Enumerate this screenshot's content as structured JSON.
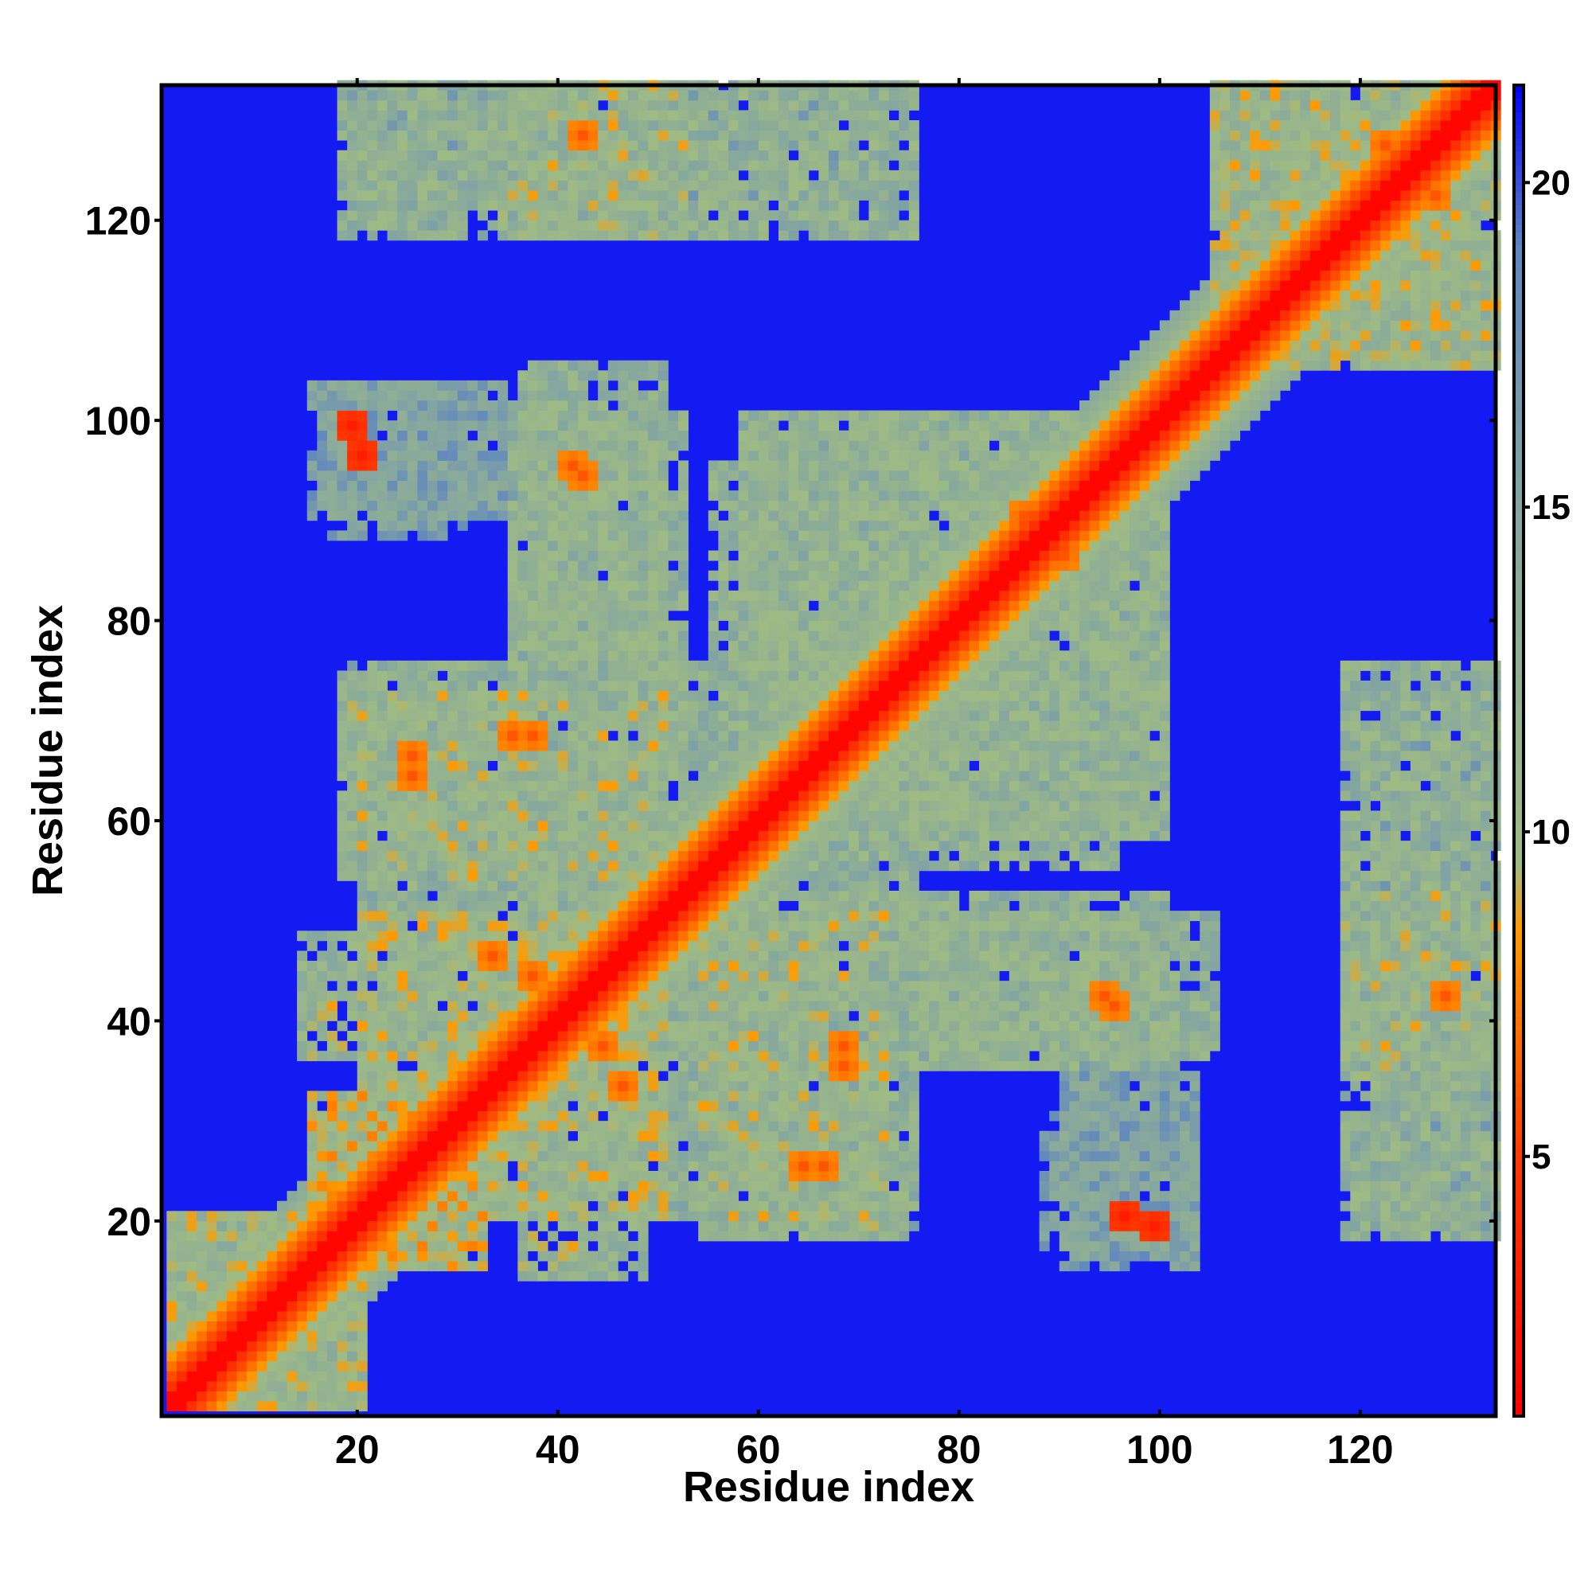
{
  "chart_data": {
    "type": "heatmap",
    "title": "",
    "xlabel": "Residue index",
    "ylabel": "Residue index",
    "n_residues": 133,
    "x_range": [
      1,
      133
    ],
    "y_range": [
      1,
      133
    ],
    "x_ticks": [
      20,
      40,
      60,
      80,
      100,
      120
    ],
    "y_ticks": [
      20,
      40,
      60,
      80,
      100,
      120
    ],
    "colorbar": {
      "ticks": [
        5,
        10,
        15,
        20
      ],
      "range": [
        1,
        21.5
      ],
      "stops": [
        {
          "value": 1,
          "color": "#ff0000"
        },
        {
          "value": 5,
          "color": "#ff3a00"
        },
        {
          "value": 8.5,
          "color": "#ff9a00"
        },
        {
          "value": 9.5,
          "color": "#9fbb84"
        },
        {
          "value": 15,
          "color": "#85a6a0"
        },
        {
          "value": 19,
          "color": "#5f86c0"
        },
        {
          "value": 21.5,
          "color": "#0000ff"
        }
      ]
    },
    "background_value": 21,
    "diagonal_band": {
      "half_width": 9,
      "core_value": 1.5,
      "edge_value": 14
    },
    "contact_regions": [
      {
        "x": [
          1,
          20
        ],
        "y": [
          1,
          20
        ],
        "value": 12
      },
      {
        "x": [
          15,
          32
        ],
        "y": [
          15,
          32
        ],
        "value": 11
      },
      {
        "x": [
          20,
          50
        ],
        "y": [
          30,
          50
        ],
        "value": 12
      },
      {
        "x": [
          30,
          50
        ],
        "y": [
          20,
          50
        ],
        "value": 12
      },
      {
        "x": [
          14,
          48
        ],
        "y": [
          36,
          48
        ],
        "value": 12
      },
      {
        "x": [
          35,
          75
        ],
        "y": [
          20,
          55
        ],
        "value": 13
      },
      {
        "x": [
          60,
          75
        ],
        "y": [
          18,
          60
        ],
        "value": 14
      },
      {
        "x": [
          18,
          50
        ],
        "y": [
          54,
          72
        ],
        "value": 12
      },
      {
        "x": [
          35,
          52
        ],
        "y": [
          55,
          100
        ],
        "value": 13
      },
      {
        "x": [
          58,
          95
        ],
        "y": [
          55,
          100
        ],
        "value": 13
      },
      {
        "x": [
          65,
          100
        ],
        "y": [
          60,
          95
        ],
        "value": 13
      },
      {
        "x": [
          75,
          105
        ],
        "y": [
          36,
          50
        ],
        "value": 13
      },
      {
        "x": [
          90,
          103
        ],
        "y": [
          15,
          35
        ],
        "value": 16
      },
      {
        "x": [
          17,
          30
        ],
        "y": [
          88,
          103
        ],
        "value": 16
      },
      {
        "x": [
          18,
          75
        ],
        "y": [
          118,
          133
        ],
        "value": 13
      },
      {
        "x": [
          118,
          133
        ],
        "y": [
          34,
          52
        ],
        "value": 12
      },
      {
        "x": [
          122,
          132
        ],
        "y": [
          18,
          72
        ],
        "value": 15
      },
      {
        "x": [
          105,
          133
        ],
        "y": [
          105,
          133
        ],
        "value": 12
      }
    ],
    "hotspots": [
      {
        "x": 13,
        "y": 15,
        "value": 6
      },
      {
        "x": 22,
        "y": 25,
        "value": 6
      },
      {
        "x": 37,
        "y": 44,
        "value": 6
      },
      {
        "x": 44,
        "y": 37,
        "value": 6
      },
      {
        "x": 46,
        "y": 33,
        "value": 6
      },
      {
        "x": 35,
        "y": 68,
        "value": 6
      },
      {
        "x": 25,
        "y": 66,
        "value": 6
      },
      {
        "x": 41,
        "y": 95,
        "value": 6
      },
      {
        "x": 42,
        "y": 128,
        "value": 6
      },
      {
        "x": 68,
        "y": 37,
        "value": 6
      },
      {
        "x": 64,
        "y": 25,
        "value": 6
      },
      {
        "x": 86,
        "y": 90,
        "value": 6
      },
      {
        "x": 94,
        "y": 42,
        "value": 6
      },
      {
        "x": 128,
        "y": 42,
        "value": 6
      },
      {
        "x": 122,
        "y": 125,
        "value": 6
      },
      {
        "x": 127,
        "y": 122,
        "value": 6
      },
      {
        "x": 111,
        "y": 113,
        "value": 7
      },
      {
        "x": 96,
        "y": 20,
        "value": 3
      },
      {
        "x": 99,
        "y": 19,
        "value": 3
      },
      {
        "x": 19,
        "y": 99,
        "value": 3
      },
      {
        "x": 20,
        "y": 96,
        "value": 3
      }
    ],
    "grid": false,
    "legend": "colorbar-right"
  }
}
